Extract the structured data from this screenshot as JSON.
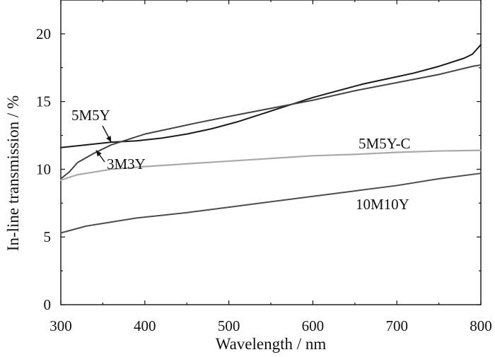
{
  "chart_data": {
    "type": "line",
    "xlabel": "Wavelength / nm",
    "ylabel": "In-line transmission / %",
    "xlim": [
      300,
      800
    ],
    "ylim": [
      0,
      22.5
    ],
    "xticks": [
      300,
      400,
      500,
      600,
      700,
      800
    ],
    "yticks": [
      0,
      5,
      10,
      15,
      20
    ],
    "grid": false,
    "legend": "none",
    "series": [
      {
        "name": "5M5Y",
        "color": "#1a1a1a",
        "x": [
          300,
          330,
          360,
          390,
          420,
          450,
          480,
          510,
          540,
          570,
          600,
          630,
          660,
          690,
          720,
          750,
          780,
          790,
          800
        ],
        "y": [
          11.6,
          11.8,
          12.0,
          12.1,
          12.3,
          12.6,
          13.0,
          13.5,
          14.1,
          14.7,
          15.3,
          15.8,
          16.3,
          16.7,
          17.1,
          17.6,
          18.2,
          18.5,
          19.2
        ]
      },
      {
        "name": "3M3Y",
        "color": "#444444",
        "x": [
          300,
          310,
          320,
          340,
          360,
          380,
          400,
          430,
          460,
          500,
          550,
          600,
          650,
          700,
          750,
          790,
          800
        ],
        "y": [
          9.3,
          9.8,
          10.5,
          11.2,
          11.8,
          12.2,
          12.6,
          13.0,
          13.4,
          13.9,
          14.5,
          15.1,
          15.8,
          16.4,
          17.0,
          17.6,
          17.7
        ]
      },
      {
        "name": "5M5Y-C",
        "color": "#a9a9a9",
        "x": [
          300,
          320,
          340,
          360,
          400,
          450,
          500,
          550,
          600,
          650,
          700,
          750,
          800
        ],
        "y": [
          9.2,
          9.6,
          9.8,
          10.0,
          10.2,
          10.4,
          10.6,
          10.8,
          11.0,
          11.1,
          11.25,
          11.35,
          11.4
        ]
      },
      {
        "name": "10M10Y",
        "color": "#4d4d4d",
        "x": [
          300,
          330,
          360,
          390,
          420,
          450,
          500,
          550,
          600,
          650,
          700,
          750,
          800
        ],
        "y": [
          5.3,
          5.8,
          6.1,
          6.4,
          6.6,
          6.8,
          7.2,
          7.6,
          8.0,
          8.4,
          8.8,
          9.3,
          9.7
        ]
      }
    ],
    "annotations": [
      {
        "text": "5M5Y",
        "series": "5M5Y",
        "arrow_to": {
          "x": 360,
          "y": 12.0
        }
      },
      {
        "text": "3M3Y",
        "series": "3M3Y",
        "arrow_to": {
          "x": 342,
          "y": 11.4
        }
      },
      {
        "text": "5M5Y-C",
        "series": "5M5Y-C"
      },
      {
        "text": "10M10Y",
        "series": "10M10Y"
      }
    ]
  }
}
